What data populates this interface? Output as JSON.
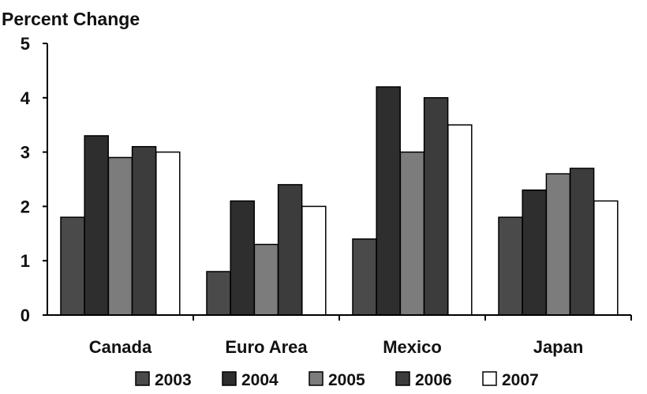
{
  "chart_data": {
    "type": "bar",
    "ylabel": "Percent Change",
    "ylim": [
      0,
      5
    ],
    "yticks": [
      "0",
      "1",
      "2",
      "3",
      "4",
      "5"
    ],
    "categories": [
      "Canada",
      "Euro Area",
      "Mexico",
      "Japan"
    ],
    "series": [
      {
        "name": "2003",
        "color": "#4a4a4a",
        "values": [
          1.8,
          0.8,
          1.4,
          1.8
        ]
      },
      {
        "name": "2004",
        "color": "#2e2e2e",
        "values": [
          3.3,
          2.1,
          4.2,
          2.3
        ]
      },
      {
        "name": "2005",
        "color": "#7c7c7c",
        "values": [
          2.9,
          1.3,
          3.0,
          2.6
        ]
      },
      {
        "name": "2006",
        "color": "#3c3c3c",
        "values": [
          3.1,
          2.4,
          4.0,
          2.7
        ]
      },
      {
        "name": "2007",
        "color": "#ffffff",
        "values": [
          3.0,
          2.0,
          3.5,
          2.1
        ]
      }
    ],
    "legend_position": "bottom",
    "grid": false
  }
}
